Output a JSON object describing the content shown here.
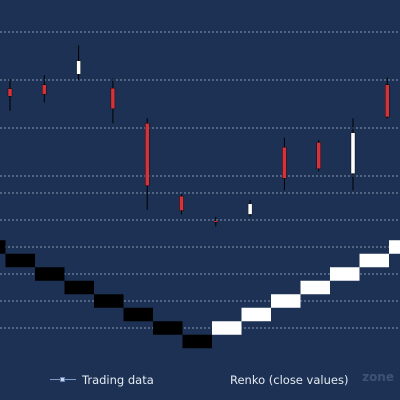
{
  "chart_data": [
    {
      "type": "candlestick",
      "series_name": "Trading data",
      "colors": {
        "up": "#ffffff",
        "down": "#d6323a",
        "wick": "#000000",
        "grid": "#a9b8d0"
      },
      "candles": [
        {
          "open": 0.82,
          "close": 0.66,
          "high": 1.02,
          "low": 0.36
        },
        {
          "open": 0.9,
          "close": 0.7,
          "high": 1.1,
          "low": 0.53
        },
        {
          "open": 1.12,
          "close": 1.4,
          "high": 1.72,
          "low": 1.0
        },
        {
          "open": 0.83,
          "close": 0.4,
          "high": 1.03,
          "low": 0.1
        },
        {
          "open": 0.1,
          "close": -1.2,
          "high": 0.2,
          "low": -1.7
        },
        {
          "open": -1.42,
          "close": -1.72,
          "high": -1.35,
          "low": -1.8
        },
        {
          "open": -1.93,
          "close": -1.96,
          "high": -1.85,
          "low": -2.05
        },
        {
          "open": -1.8,
          "close": -1.58,
          "high": -1.5,
          "low": -1.85
        },
        {
          "open": -0.4,
          "close": -1.05,
          "high": -0.2,
          "low": -1.3
        },
        {
          "open": -0.3,
          "close": -0.85,
          "high": -0.25,
          "low": -0.9
        },
        {
          "open": -0.95,
          "close": -0.1,
          "high": 0.2,
          "low": -1.3
        },
        {
          "open": 0.9,
          "close": 0.23,
          "high": 1.05,
          "low": 0.2
        }
      ]
    },
    {
      "type": "renko",
      "series_name": "Renko (close values)",
      "colors": {
        "up": "#ffffff",
        "down": "#000000",
        "grid": "#a9b8d0"
      },
      "bricks": [
        {
          "low": 4.5,
          "high": 5.5,
          "direction": "down"
        },
        {
          "low": 3.5,
          "high": 4.5,
          "direction": "down"
        },
        {
          "low": 2.5,
          "high": 3.5,
          "direction": "down"
        },
        {
          "low": 1.5,
          "high": 2.5,
          "direction": "down"
        },
        {
          "low": 0.5,
          "high": 1.5,
          "direction": "down"
        },
        {
          "low": -0.5,
          "high": 0.5,
          "direction": "down"
        },
        {
          "low": -1.5,
          "high": -0.5,
          "direction": "down"
        },
        {
          "low": -2.5,
          "high": -1.5,
          "direction": "down"
        },
        {
          "low": -1.5,
          "high": -0.5,
          "direction": "up"
        },
        {
          "low": -0.5,
          "high": 0.5,
          "direction": "up"
        },
        {
          "low": 0.5,
          "high": 1.5,
          "direction": "up"
        },
        {
          "low": 1.5,
          "high": 2.5,
          "direction": "up"
        },
        {
          "low": 2.5,
          "high": 3.5,
          "direction": "up"
        },
        {
          "low": 3.5,
          "high": 4.5,
          "direction": "up"
        },
        {
          "low": 4.5,
          "high": 5.5,
          "direction": "up"
        }
      ]
    }
  ],
  "legend": {
    "trading_label": "Trading data",
    "renko_label": "Renko (close values)"
  },
  "watermark": "zone"
}
